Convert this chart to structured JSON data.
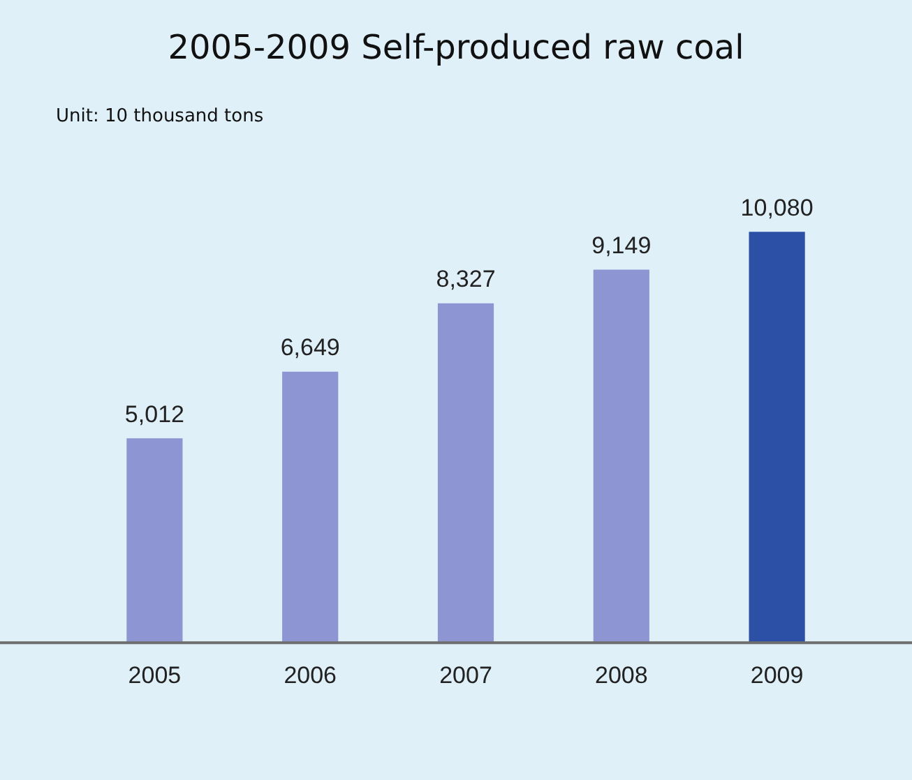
{
  "chart_data": {
    "type": "bar",
    "title": "2005-2009 Self-produced raw coal",
    "annotations": [
      "Unit: 10 thousand tons"
    ],
    "categories": [
      "2005",
      "2006",
      "2007",
      "2008",
      "2009"
    ],
    "values": [
      5012,
      6649,
      8327,
      9149,
      10080
    ],
    "value_labels": [
      "5,012",
      "6,649",
      "8,327",
      "9,149",
      "10,080"
    ],
    "colors": [
      "#8d96d2",
      "#8d96d2",
      "#8d96d2",
      "#8d96d2",
      "#2c50a5"
    ],
    "grid": false,
    "legend": false
  }
}
